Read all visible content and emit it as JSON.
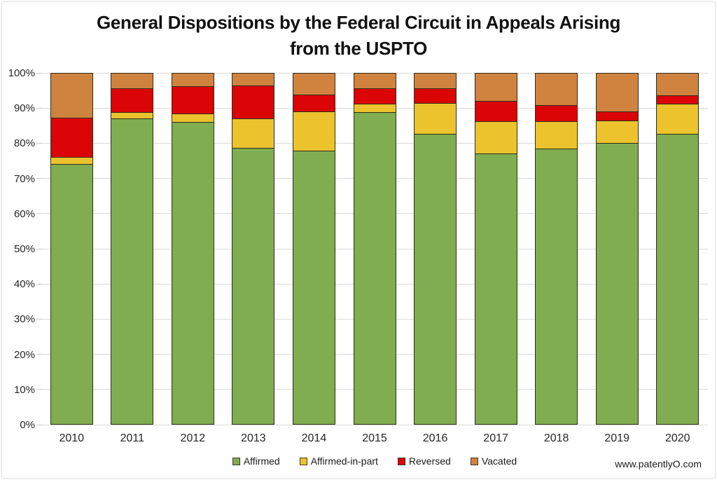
{
  "watermark": "www.patentlyO.com",
  "chart_data": {
    "type": "bar",
    "stacked": true,
    "percent_stacked": true,
    "title": "General Dispositions by the Federal Circuit in Appeals Arising from the USPTO",
    "title_lines": [
      "General Dispositions by the Federal Circuit in Appeals Arising",
      "from the USPTO"
    ],
    "categories": [
      "2010",
      "2011",
      "2012",
      "2013",
      "2014",
      "2015",
      "2016",
      "2017",
      "2018",
      "2019",
      "2020"
    ],
    "series": [
      {
        "name": "Affirmed",
        "color": "#80ad4f",
        "values": [
          74.0,
          86.8,
          85.8,
          78.5,
          77.7,
          88.7,
          82.5,
          76.8,
          78.3,
          79.8,
          82.5
        ]
      },
      {
        "name": "Affirmed-in-part",
        "color": "#ecc32d",
        "values": [
          2.0,
          1.9,
          2.5,
          8.3,
          11.1,
          2.4,
          8.8,
          9.3,
          7.8,
          6.5,
          8.6
        ]
      },
      {
        "name": "Reversed",
        "color": "#db0406",
        "values": [
          11.0,
          6.8,
          7.7,
          9.5,
          4.9,
          4.4,
          4.2,
          5.8,
          4.6,
          2.6,
          2.4
        ]
      },
      {
        "name": "Vacated",
        "color": "#d0823f",
        "values": [
          13.0,
          4.5,
          4.0,
          3.7,
          6.3,
          4.5,
          4.5,
          8.1,
          9.3,
          11.1,
          6.5
        ]
      }
    ],
    "xlabel": "",
    "ylabel": "",
    "ylim": [
      0,
      100
    ],
    "ytick_step": 10,
    "ytick_labels": [
      "0%",
      "10%",
      "20%",
      "30%",
      "40%",
      "50%",
      "60%",
      "70%",
      "80%",
      "90%",
      "100%"
    ],
    "grid": true,
    "legend_position": "bottom",
    "segment_border_color": "#2e2e1a"
  }
}
